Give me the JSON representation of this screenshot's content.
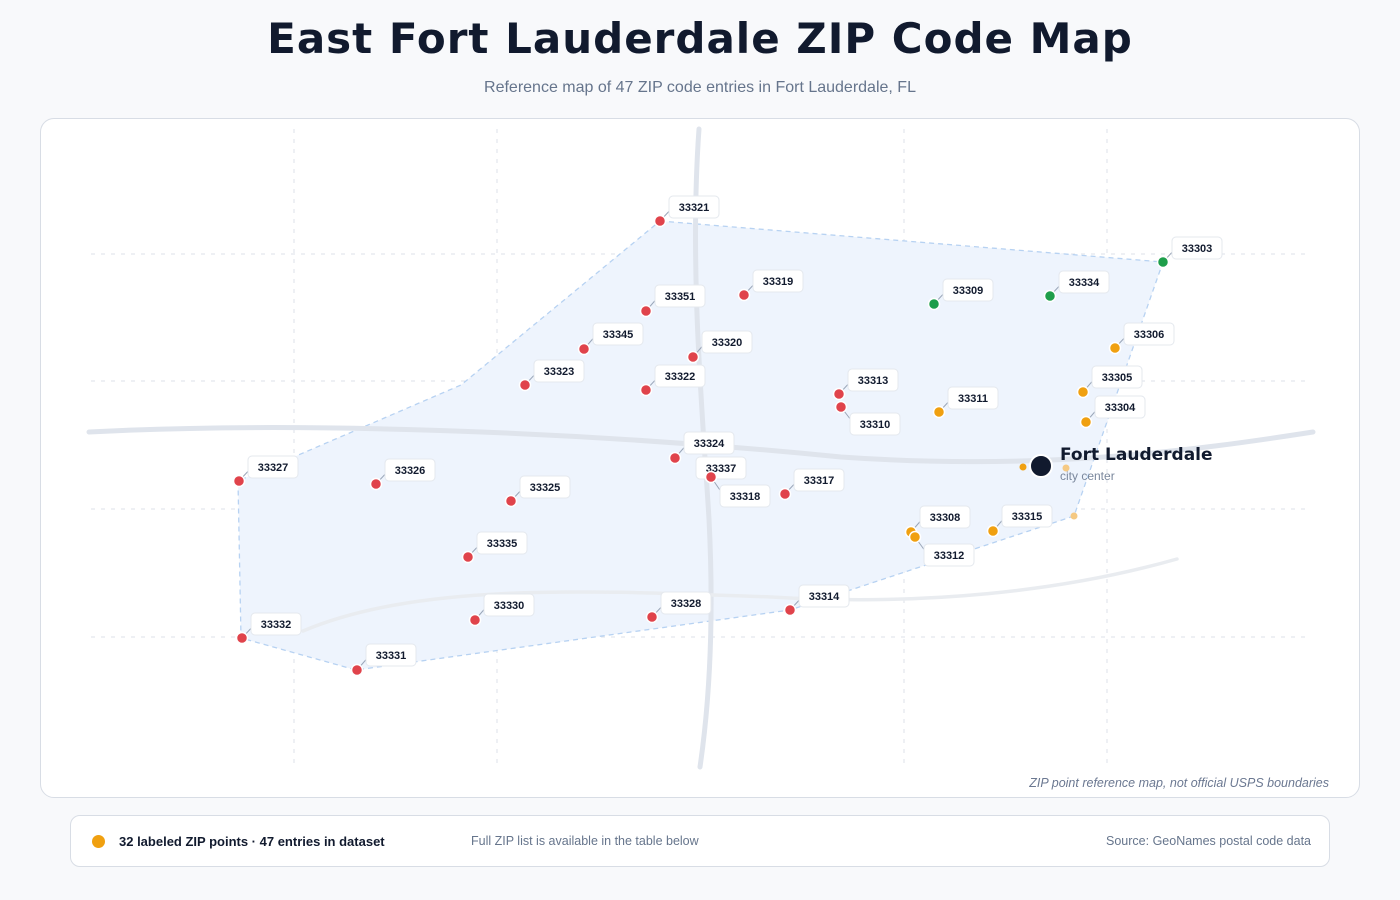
{
  "title": "East Fort Lauderdale ZIP Code Map",
  "subtitle": "Reference map of 47 ZIP code entries in Fort Lauderdale, FL",
  "disclaimer": "ZIP point reference map, not official USPS boundaries",
  "city": {
    "name": "Fort Lauderdale",
    "sub": "city center"
  },
  "legend": {
    "count_text": "32 labeled ZIP points · 47 entries in dataset",
    "note": "Full ZIP list is available in the table below",
    "source": "Source: GeoNames postal code data",
    "dot_color": "#f0a010"
  },
  "colors": {
    "red": "#e0434b",
    "orange": "#f0a010",
    "green": "#1e9e4a",
    "city": "#111a2e"
  },
  "zips": [
    {
      "zip": "33321",
      "color": "red"
    },
    {
      "zip": "33303",
      "color": "green"
    },
    {
      "zip": "33319",
      "color": "red"
    },
    {
      "zip": "33351",
      "color": "red"
    },
    {
      "zip": "33309",
      "color": "green"
    },
    {
      "zip": "33334",
      "color": "green"
    },
    {
      "zip": "33345",
      "color": "red"
    },
    {
      "zip": "33320",
      "color": "red"
    },
    {
      "zip": "33306",
      "color": "orange"
    },
    {
      "zip": "33323",
      "color": "red"
    },
    {
      "zip": "33322",
      "color": "red"
    },
    {
      "zip": "33313",
      "color": "red"
    },
    {
      "zip": "33305",
      "color": "orange"
    },
    {
      "zip": "33311",
      "color": "orange"
    },
    {
      "zip": "33304",
      "color": "orange"
    },
    {
      "zip": "33310",
      "color": "red"
    },
    {
      "zip": "33324",
      "color": "red"
    },
    {
      "zip": "33327",
      "color": "red"
    },
    {
      "zip": "33326",
      "color": "red"
    },
    {
      "zip": "33337",
      "color": "red"
    },
    {
      "zip": "33317",
      "color": "red"
    },
    {
      "zip": "33325",
      "color": "red"
    },
    {
      "zip": "33318",
      "color": "red"
    },
    {
      "zip": "33308",
      "color": "orange"
    },
    {
      "zip": "33315",
      "color": "orange"
    },
    {
      "zip": "33312",
      "color": "orange"
    },
    {
      "zip": "33335",
      "color": "red"
    },
    {
      "zip": "33330",
      "color": "red"
    },
    {
      "zip": "33328",
      "color": "red"
    },
    {
      "zip": "33314",
      "color": "red"
    },
    {
      "zip": "33332",
      "color": "red"
    },
    {
      "zip": "33331",
      "color": "red"
    }
  ]
}
